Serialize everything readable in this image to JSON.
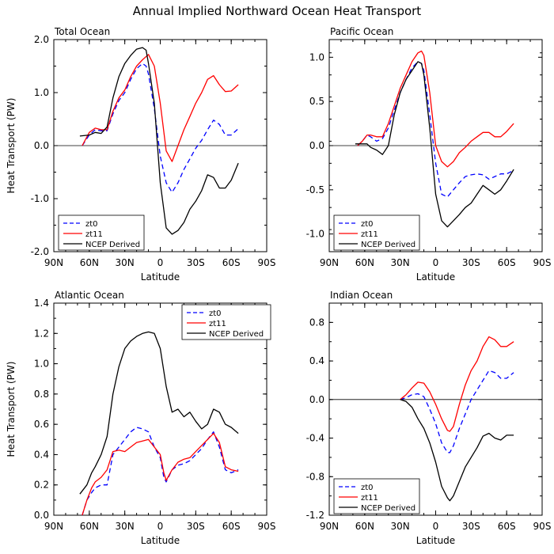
{
  "title": "Annual Implied Northward Ocean Heat Transport",
  "colors": {
    "zt0": "#0000ff",
    "zt11": "#ff0000",
    "ncep": "#000000"
  },
  "chart_data": [
    {
      "type": "line",
      "panel_title": "Total Ocean",
      "xlabel": "Latitude",
      "ylabel": "Heat Transport (PW)",
      "xlim": [
        90,
        -90
      ],
      "ylim": [
        -2.0,
        2.0
      ],
      "yticks": [
        -2.0,
        -1.0,
        0.0,
        1.0,
        2.0
      ],
      "ytick_labels": [
        "-2.0",
        "-1.0",
        "0.0",
        "1.0",
        "2.0"
      ],
      "xticks": [
        90,
        60,
        30,
        0,
        -30,
        -60,
        -90
      ],
      "xtick_labels": [
        "90N",
        "60N",
        "30N",
        "0",
        "30S",
        "60S",
        "90S"
      ],
      "zero_line": true,
      "legend": [
        "zt0",
        "zt11",
        "NCEP Derived"
      ],
      "series": [
        {
          "name": "zt0",
          "style": "dashed",
          "x": [
            66,
            60,
            55,
            50,
            45,
            40,
            35,
            30,
            25,
            20,
            15,
            12,
            10,
            5,
            0,
            -5,
            -10,
            -15,
            -20,
            -25,
            -30,
            -35,
            -40,
            -45,
            -50,
            -55,
            -60,
            -66
          ],
          "values": [
            0.0,
            0.2,
            0.3,
            0.28,
            0.28,
            0.6,
            0.85,
            1.0,
            1.25,
            1.45,
            1.55,
            1.5,
            1.35,
            0.7,
            -0.2,
            -0.7,
            -0.88,
            -0.7,
            -0.45,
            -0.25,
            -0.05,
            0.1,
            0.3,
            0.48,
            0.4,
            0.2,
            0.2,
            0.32
          ]
        },
        {
          "name": "zt11",
          "style": "solid",
          "x": [
            66,
            60,
            55,
            50,
            45,
            40,
            35,
            30,
            25,
            20,
            15,
            10,
            5,
            0,
            -5,
            -10,
            -15,
            -20,
            -25,
            -30,
            -35,
            -40,
            -45,
            -50,
            -55,
            -60,
            -66
          ],
          "values": [
            0.0,
            0.25,
            0.33,
            0.3,
            0.3,
            0.65,
            0.9,
            1.05,
            1.3,
            1.5,
            1.62,
            1.72,
            1.5,
            0.8,
            -0.1,
            -0.3,
            0.0,
            0.3,
            0.55,
            0.8,
            1.0,
            1.25,
            1.32,
            1.15,
            1.02,
            1.03,
            1.15
          ]
        },
        {
          "name": "NCEP Derived",
          "style": "solid",
          "x": [
            68,
            60,
            55,
            50,
            45,
            40,
            35,
            30,
            25,
            20,
            15,
            12,
            10,
            5,
            0,
            -5,
            -10,
            -15,
            -20,
            -25,
            -30,
            -35,
            -40,
            -45,
            -50,
            -55,
            -60,
            -66
          ],
          "values": [
            0.18,
            0.2,
            0.25,
            0.23,
            0.35,
            0.9,
            1.3,
            1.55,
            1.7,
            1.82,
            1.85,
            1.8,
            1.55,
            0.8,
            -0.7,
            -1.55,
            -1.67,
            -1.6,
            -1.45,
            -1.2,
            -1.05,
            -0.85,
            -0.55,
            -0.6,
            -0.8,
            -0.8,
            -0.65,
            -0.33
          ]
        }
      ]
    },
    {
      "type": "line",
      "panel_title": "Pacific Ocean",
      "xlabel": "Latitude",
      "ylabel": "",
      "xlim": [
        90,
        -90
      ],
      "ylim": [
        -1.2,
        1.2
      ],
      "yticks": [
        -1.0,
        -0.5,
        0.0,
        0.5,
        1.0
      ],
      "ytick_labels": [
        "-1.0",
        "-0.5",
        "0.0",
        "0.5",
        "1.0"
      ],
      "xticks": [
        90,
        60,
        30,
        0,
        -30,
        -60,
        -90
      ],
      "xtick_labels": [
        "90N",
        "60N",
        "30N",
        "0",
        "30S",
        "60S",
        "90S"
      ],
      "zero_line": true,
      "legend": [
        "zt0",
        "zt11",
        "NCEP Derived"
      ],
      "series": [
        {
          "name": "zt0",
          "style": "dashed",
          "x": [
            66,
            62,
            58,
            55,
            50,
            45,
            40,
            35,
            30,
            25,
            20,
            15,
            12,
            10,
            5,
            0,
            -5,
            -10,
            -15,
            -20,
            -25,
            -30,
            -35,
            -40,
            -45,
            -50,
            -55,
            -60,
            -66
          ],
          "values": [
            0.0,
            0.05,
            0.12,
            0.1,
            0.05,
            0.08,
            0.2,
            0.4,
            0.6,
            0.75,
            0.88,
            0.95,
            0.93,
            0.85,
            0.35,
            -0.2,
            -0.55,
            -0.58,
            -0.5,
            -0.42,
            -0.35,
            -0.33,
            -0.32,
            -0.33,
            -0.38,
            -0.35,
            -0.32,
            -0.32,
            -0.28
          ]
        },
        {
          "name": "zt11",
          "style": "solid",
          "x": [
            66,
            62,
            58,
            55,
            50,
            45,
            40,
            35,
            30,
            25,
            20,
            15,
            12,
            10,
            5,
            0,
            -5,
            -10,
            -15,
            -20,
            -25,
            -30,
            -35,
            -40,
            -45,
            -50,
            -55,
            -60,
            -66
          ],
          "values": [
            0.0,
            0.05,
            0.12,
            0.12,
            0.1,
            0.1,
            0.25,
            0.45,
            0.65,
            0.8,
            0.95,
            1.05,
            1.07,
            1.02,
            0.6,
            0.0,
            -0.18,
            -0.24,
            -0.18,
            -0.08,
            -0.02,
            0.05,
            0.1,
            0.15,
            0.15,
            0.1,
            0.1,
            0.16,
            0.25
          ]
        },
        {
          "name": "NCEP Derived",
          "style": "solid",
          "x": [
            68,
            62,
            58,
            55,
            50,
            45,
            40,
            35,
            30,
            25,
            20,
            15,
            12,
            10,
            5,
            0,
            -5,
            -10,
            -15,
            -20,
            -25,
            -30,
            -35,
            -40,
            -45,
            -50,
            -55,
            -60,
            -66
          ],
          "values": [
            0.02,
            0.02,
            0.02,
            -0.02,
            -0.05,
            -0.1,
            0.0,
            0.35,
            0.6,
            0.75,
            0.85,
            0.95,
            0.93,
            0.8,
            0.2,
            -0.55,
            -0.85,
            -0.92,
            -0.85,
            -0.78,
            -0.7,
            -0.65,
            -0.55,
            -0.45,
            -0.5,
            -0.55,
            -0.5,
            -0.4,
            -0.27
          ]
        }
      ]
    },
    {
      "type": "line",
      "panel_title": "Atlantic Ocean",
      "xlabel": "Latitude",
      "ylabel": "Heat Transport (PW)",
      "xlim": [
        90,
        -90
      ],
      "ylim": [
        0.0,
        1.4
      ],
      "yticks": [
        0.0,
        0.2,
        0.4,
        0.6,
        0.8,
        1.0,
        1.2,
        1.4
      ],
      "ytick_labels": [
        "0.0",
        "0.2",
        "0.4",
        "0.6",
        "0.8",
        "1.0",
        "1.2",
        "1.4"
      ],
      "xticks": [
        90,
        60,
        30,
        0,
        -30,
        -60,
        -90
      ],
      "xtick_labels": [
        "90N",
        "60N",
        "30N",
        "0",
        "30S",
        "60S",
        "90S"
      ],
      "zero_line": false,
      "legend": [
        "zt0",
        "zt11",
        "NCEP Derived"
      ],
      "series": [
        {
          "name": "zt0",
          "style": "dashed",
          "x": [
            66,
            62,
            58,
            55,
            50,
            45,
            40,
            35,
            30,
            25,
            20,
            15,
            10,
            5,
            0,
            -3,
            -5,
            -10,
            -15,
            -20,
            -25,
            -30,
            -35,
            -40,
            -45,
            -50,
            -55,
            -60,
            -66
          ],
          "values": [
            0.0,
            0.1,
            0.15,
            0.18,
            0.2,
            0.2,
            0.4,
            0.45,
            0.5,
            0.55,
            0.58,
            0.57,
            0.55,
            0.45,
            0.38,
            0.25,
            0.22,
            0.3,
            0.33,
            0.34,
            0.36,
            0.4,
            0.44,
            0.5,
            0.55,
            0.45,
            0.3,
            0.28,
            0.3
          ]
        },
        {
          "name": "zt11",
          "style": "solid",
          "x": [
            66,
            62,
            58,
            55,
            50,
            45,
            40,
            35,
            30,
            25,
            20,
            15,
            10,
            5,
            0,
            -3,
            -5,
            -10,
            -15,
            -20,
            -25,
            -30,
            -35,
            -40,
            -45,
            -50,
            -55,
            -60,
            -66
          ],
          "values": [
            0.0,
            0.1,
            0.18,
            0.22,
            0.25,
            0.3,
            0.42,
            0.43,
            0.42,
            0.45,
            0.48,
            0.49,
            0.5,
            0.45,
            0.4,
            0.28,
            0.23,
            0.3,
            0.35,
            0.37,
            0.38,
            0.42,
            0.46,
            0.5,
            0.54,
            0.48,
            0.32,
            0.3,
            0.29
          ]
        },
        {
          "name": "NCEP Derived",
          "style": "solid",
          "x": [
            68,
            62,
            58,
            55,
            50,
            45,
            40,
            35,
            30,
            25,
            20,
            15,
            10,
            5,
            0,
            -5,
            -10,
            -15,
            -20,
            -25,
            -30,
            -35,
            -40,
            -45,
            -50,
            -55,
            -60,
            -66
          ],
          "values": [
            0.14,
            0.2,
            0.28,
            0.32,
            0.4,
            0.52,
            0.8,
            0.98,
            1.1,
            1.15,
            1.18,
            1.2,
            1.21,
            1.2,
            1.1,
            0.85,
            0.68,
            0.7,
            0.65,
            0.68,
            0.62,
            0.57,
            0.6,
            0.7,
            0.68,
            0.6,
            0.58,
            0.54
          ]
        }
      ]
    },
    {
      "type": "line",
      "panel_title": "Indian Ocean",
      "xlabel": "Latitude",
      "ylabel": "",
      "xlim": [
        90,
        -90
      ],
      "ylim": [
        -1.2,
        1.0
      ],
      "yticks": [
        -1.2,
        -0.8,
        -0.4,
        0.0,
        0.4,
        0.8
      ],
      "ytick_labels": [
        "-1.2",
        "-0.8",
        "-0.4",
        "0.0",
        "0.4",
        "0.8"
      ],
      "xticks": [
        90,
        60,
        30,
        0,
        -30,
        -60,
        -90
      ],
      "xtick_labels": [
        "90N",
        "60N",
        "30N",
        "0",
        "30S",
        "60S",
        "90S"
      ],
      "zero_line": true,
      "legend": [
        "zt0",
        "zt11",
        "NCEP Derived"
      ],
      "series": [
        {
          "name": "zt0",
          "style": "dashed",
          "x": [
            30,
            25,
            20,
            15,
            10,
            5,
            0,
            -5,
            -10,
            -12,
            -15,
            -20,
            -25,
            -30,
            -35,
            -40,
            -45,
            -50,
            -55,
            -60,
            -66
          ],
          "values": [
            0.0,
            0.02,
            0.05,
            0.06,
            0.03,
            -0.1,
            -0.25,
            -0.45,
            -0.55,
            -0.55,
            -0.48,
            -0.3,
            -0.15,
            0.0,
            0.1,
            0.2,
            0.3,
            0.28,
            0.22,
            0.22,
            0.28
          ]
        },
        {
          "name": "zt11",
          "style": "solid",
          "x": [
            30,
            25,
            20,
            15,
            10,
            5,
            0,
            -5,
            -10,
            -12,
            -15,
            -20,
            -25,
            -30,
            -35,
            -40,
            -45,
            -50,
            -55,
            -60,
            -66
          ],
          "values": [
            0.0,
            0.05,
            0.12,
            0.18,
            0.17,
            0.08,
            -0.05,
            -0.2,
            -0.32,
            -0.33,
            -0.28,
            -0.05,
            0.15,
            0.3,
            0.4,
            0.55,
            0.65,
            0.62,
            0.55,
            0.55,
            0.6
          ]
        },
        {
          "name": "NCEP Derived",
          "style": "solid",
          "x": [
            30,
            25,
            20,
            15,
            10,
            5,
            0,
            -5,
            -10,
            -12,
            -15,
            -20,
            -25,
            -30,
            -35,
            -40,
            -45,
            -50,
            -55,
            -60,
            -66
          ],
          "values": [
            0.0,
            -0.02,
            -0.08,
            -0.2,
            -0.3,
            -0.45,
            -0.65,
            -0.9,
            -1.02,
            -1.05,
            -1.0,
            -0.85,
            -0.7,
            -0.6,
            -0.5,
            -0.38,
            -0.35,
            -0.4,
            -0.42,
            -0.37,
            -0.37
          ]
        }
      ]
    }
  ]
}
